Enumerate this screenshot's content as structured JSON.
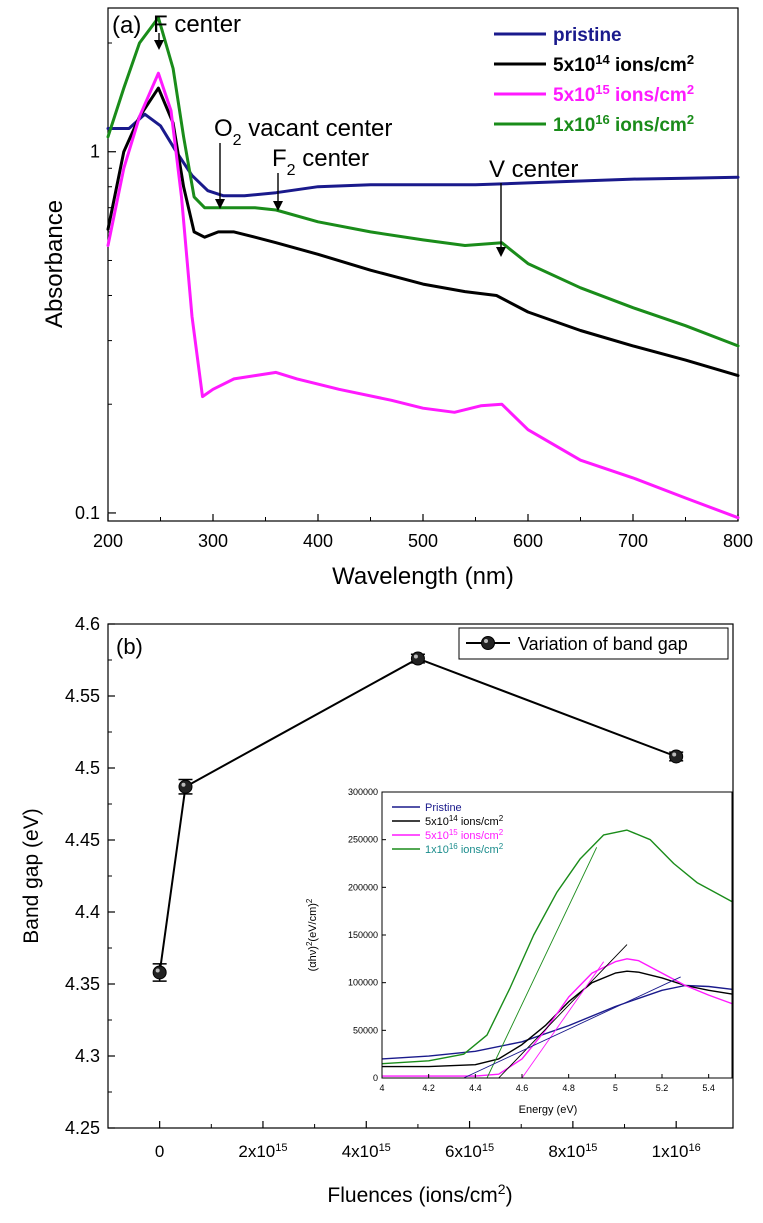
{
  "chart_data": [
    {
      "panel": "a",
      "type": "line",
      "panel_label": "(a)",
      "xlabel": "Wavelength (nm)",
      "ylabel": "Absorbance",
      "xlim": [
        200,
        800
      ],
      "ylim": [
        0.095,
        2.5
      ],
      "yscale": "log",
      "x_ticks": [
        200,
        300,
        400,
        500,
        600,
        700,
        800
      ],
      "y_ticks": [
        {
          "value": 0.1,
          "label": "0.1"
        },
        {
          "value": 1,
          "label": "1"
        }
      ],
      "legend_position": "top-right",
      "series": [
        {
          "name": "pristine",
          "name_base": "pristine",
          "name_exp": "",
          "name_tail": "",
          "color": "#1a1a8c",
          "x": [
            200,
            220,
            235,
            250,
            265,
            280,
            295,
            310,
            330,
            360,
            400,
            450,
            500,
            550,
            600,
            650,
            700,
            750,
            800
          ],
          "y": [
            1.16,
            1.16,
            1.27,
            1.18,
            1.0,
            0.86,
            0.78,
            0.755,
            0.755,
            0.77,
            0.8,
            0.81,
            0.81,
            0.81,
            0.82,
            0.83,
            0.84,
            0.845,
            0.85
          ]
        },
        {
          "name": "5x10^14 ions/cm^2",
          "name_base": "5x10",
          "name_exp": "14",
          "name_tail": " ions/cm",
          "color": "#000000",
          "x": [
            200,
            215,
            230,
            248,
            262,
            272,
            282,
            292,
            305,
            320,
            340,
            360,
            400,
            450,
            500,
            540,
            570,
            600,
            650,
            700,
            750,
            800
          ],
          "y": [
            0.61,
            1.0,
            1.25,
            1.5,
            1.2,
            0.8,
            0.6,
            0.58,
            0.6,
            0.6,
            0.58,
            0.56,
            0.52,
            0.47,
            0.43,
            0.41,
            0.4,
            0.36,
            0.32,
            0.29,
            0.265,
            0.24
          ]
        },
        {
          "name": "5x10^15 ions/cm^2",
          "name_base": "5x10",
          "name_exp": "15",
          "name_tail": " ions/cm",
          "color": "#ff1aff",
          "x": [
            200,
            215,
            230,
            248,
            260,
            270,
            280,
            290,
            300,
            320,
            340,
            360,
            380,
            420,
            470,
            500,
            530,
            555,
            575,
            600,
            650,
            700,
            750,
            800
          ],
          "y": [
            0.55,
            0.9,
            1.25,
            1.65,
            1.3,
            0.75,
            0.35,
            0.21,
            0.22,
            0.235,
            0.24,
            0.245,
            0.235,
            0.22,
            0.205,
            0.195,
            0.19,
            0.198,
            0.2,
            0.17,
            0.14,
            0.125,
            0.11,
            0.097
          ]
        },
        {
          "name": "1x10^16 ions/cm^2",
          "name_base": "1x10",
          "name_exp": "16",
          "name_tail": " ions/cm",
          "color": "#1a8c1a",
          "x": [
            200,
            215,
            230,
            248,
            262,
            272,
            282,
            292,
            310,
            340,
            360,
            400,
            450,
            500,
            540,
            575,
            600,
            650,
            700,
            750,
            800
          ],
          "y": [
            1.1,
            1.5,
            2.0,
            2.35,
            1.7,
            1.1,
            0.75,
            0.7,
            0.7,
            0.7,
            0.69,
            0.64,
            0.6,
            0.57,
            0.55,
            0.56,
            0.49,
            0.42,
            0.37,
            0.33,
            0.29
          ]
        }
      ],
      "annotations": [
        {
          "name": "f-center",
          "text": "F center",
          "sub": "",
          "tail": "",
          "x": 248,
          "y": 2.4
        },
        {
          "name": "o2-vacant-center",
          "text": "O",
          "sub": "2",
          "tail": " vacant center",
          "x": 307,
          "y": 0.74
        },
        {
          "name": "f2-center",
          "text": "F",
          "sub": "2",
          "tail": " center",
          "x": 361,
          "y": 0.74
        },
        {
          "name": "v-center",
          "text": "V center",
          "sub": "",
          "tail": "",
          "x": 573,
          "y": 0.56
        }
      ]
    },
    {
      "panel": "b",
      "type": "line",
      "panel_label": "(b)",
      "xlabel": "Fluences (ions/cm^2)",
      "ylabel": "Band gap (eV)",
      "xlim": [
        -1000000000000000.0,
        1.11e+16
      ],
      "ylim": [
        4.25,
        4.6
      ],
      "x_ticks": [
        {
          "value": 0,
          "label": "0",
          "exp": ""
        },
        {
          "value": 2000000000000000.0,
          "label": "2x10",
          "exp": "15"
        },
        {
          "value": 4000000000000000.0,
          "label": "4x10",
          "exp": "15"
        },
        {
          "value": 6000000000000000.0,
          "label": "6x10",
          "exp": "15"
        },
        {
          "value": 8000000000000000.0,
          "label": "8x10",
          "exp": "15"
        },
        {
          "value": 1e+16,
          "label": "1x10",
          "exp": "16"
        }
      ],
      "y_ticks": [
        "4.25",
        "4.3",
        "4.35",
        "4.4",
        "4.45",
        "4.5",
        "4.55",
        "4.6"
      ],
      "legend_position": "top-right",
      "series": [
        {
          "name": "Variation of band gap",
          "color": "#000000",
          "x": [
            0,
            500000000000000.0,
            5000000000000000.0,
            1e+16
          ],
          "y": [
            4.358,
            4.487,
            4.576,
            4.508
          ],
          "err": [
            0.006,
            0.005,
            0.003,
            0.003
          ]
        }
      ]
    },
    {
      "panel": "b-inset",
      "type": "line",
      "xlabel": "Energy (eV)",
      "ylabel": "(αhν)^2(eV/cm)^2",
      "xlim": [
        4.0,
        5.5
      ],
      "ylim": [
        0,
        300000
      ],
      "x_ticks": [
        "4",
        "4.2",
        "4.4",
        "4.6",
        "4.8",
        "5",
        "5.2",
        "5.4"
      ],
      "y_ticks": [
        "0",
        "50000",
        "100000",
        "150000",
        "200000",
        "250000",
        "300000"
      ],
      "legend_position": "top-left",
      "series": [
        {
          "name": "Pristine",
          "name_base": "Pristine",
          "name_exp": "",
          "name_tail": "",
          "label_color": "#1a1a8c",
          "color": "#1a1a8c",
          "x": [
            4.0,
            4.2,
            4.4,
            4.6,
            4.8,
            5.0,
            5.2,
            5.3,
            5.4,
            5.5
          ],
          "y": [
            20000,
            23000,
            28000,
            38000,
            55000,
            75000,
            92000,
            97000,
            96000,
            93000
          ]
        },
        {
          "name": "5x10^14 ions/cm^2",
          "name_base": "5x10",
          "name_exp": "14",
          "name_tail": " ions/cm",
          "label_color": "#000000",
          "color": "#000000",
          "x": [
            4.0,
            4.2,
            4.4,
            4.5,
            4.6,
            4.7,
            4.8,
            4.9,
            5.0,
            5.05,
            5.1,
            5.2,
            5.3,
            5.4,
            5.5
          ],
          "y": [
            12000,
            12000,
            14000,
            20000,
            35000,
            55000,
            80000,
            100000,
            110000,
            112000,
            111000,
            105000,
            97000,
            92000,
            88000
          ]
        },
        {
          "name": "5x10^15 ions/cm^2",
          "name_base": "5x10",
          "name_exp": "15",
          "name_tail": " ions/cm",
          "label_color": "#ff1aff",
          "color": "#ff1aff",
          "x": [
            4.0,
            4.4,
            4.5,
            4.6,
            4.7,
            4.8,
            4.9,
            5.0,
            5.05,
            5.1,
            5.2,
            5.3,
            5.4,
            5.5
          ],
          "y": [
            2000,
            2000,
            4000,
            20000,
            50000,
            85000,
            110000,
            122000,
            125000,
            123000,
            110000,
            97000,
            87000,
            78000
          ]
        },
        {
          "name": "1x10^16 ions/cm^2",
          "name_base": "1x10",
          "name_exp": "16",
          "name_tail": " ions/cm",
          "label_color": "#1a8c8c",
          "color": "#1a8c1a",
          "x": [
            4.0,
            4.2,
            4.35,
            4.45,
            4.55,
            4.65,
            4.75,
            4.85,
            4.95,
            5.05,
            5.15,
            5.25,
            5.35,
            5.5
          ],
          "y": [
            15000,
            18000,
            25000,
            45000,
            95000,
            150000,
            195000,
            230000,
            255000,
            260000,
            250000,
            225000,
            205000,
            185000
          ]
        }
      ],
      "fit_lines": [
        {
          "color": "#000000",
          "x": [
            4.5,
            5.05
          ],
          "y": [
            0,
            140000
          ]
        },
        {
          "color": "#ff1aff",
          "x": [
            4.6,
            4.95
          ],
          "y": [
            0,
            122000
          ]
        },
        {
          "color": "#1a8c1a",
          "x": [
            4.45,
            4.92
          ],
          "y": [
            0,
            242000
          ]
        },
        {
          "color": "#1a1a8c",
          "x": [
            4.35,
            5.28
          ],
          "y": [
            0,
            106000
          ]
        }
      ]
    }
  ]
}
